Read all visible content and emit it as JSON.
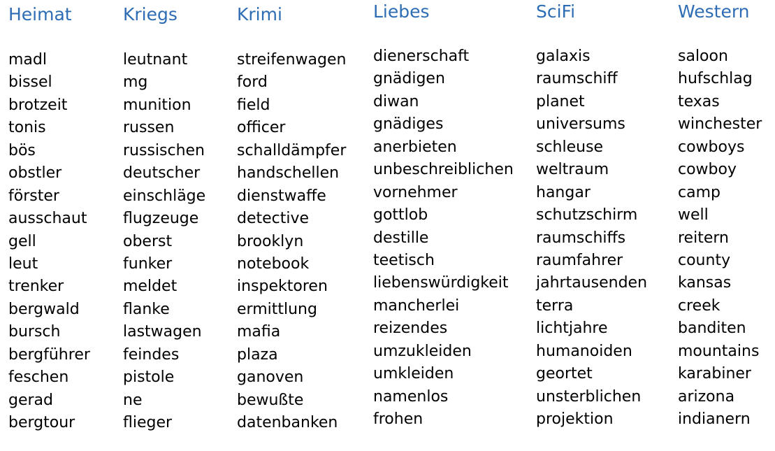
{
  "header_color": "#2E6DB4",
  "columns": [
    {
      "title": "Heimat",
      "words": [
        "madl",
        "bissel",
        "brotzeit",
        "tonis",
        "bös",
        "obstler",
        "förster",
        "ausschaut",
        "gell",
        "leut",
        "trenker",
        "bergwald",
        "bursch",
        "bergführer",
        "feschen",
        "gerad",
        "bergtour"
      ]
    },
    {
      "title": "Kriegs",
      "words": [
        "leutnant",
        "mg",
        "munition",
        "russen",
        "russischen",
        "deutscher",
        "einschläge",
        "flugzeuge",
        "oberst",
        "funker",
        "meldet",
        "flanke",
        "lastwagen",
        "feindes",
        "pistole",
        "ne",
        "flieger"
      ]
    },
    {
      "title": "Krimi",
      "words": [
        "streifenwagen",
        "ford",
        "field",
        "officer",
        "schalldämpfer",
        "handschellen",
        "dienstwaffe",
        "detective",
        "brooklyn",
        "notebook",
        "inspektoren",
        "ermittlung",
        "mafia",
        "plaza",
        "ganoven",
        "bewußte",
        "datenbanken"
      ]
    },
    {
      "title": "Liebes",
      "words": [
        "dienerschaft",
        "gnädigen",
        "diwan",
        "gnädiges",
        "anerbieten",
        "unbeschreiblichen",
        "vornehmer",
        "gottlob",
        "destille",
        "teetisch",
        "liebenswürdigkeit",
        "mancherlei",
        "reizendes",
        "umzukleiden",
        "umkleiden",
        "namenlos",
        "frohen"
      ]
    },
    {
      "title": "SciFi",
      "words": [
        "galaxis",
        "raumschiff",
        "planet",
        "universums",
        "schleuse",
        "weltraum",
        "hangar",
        "schutzschirm",
        "raumschiffs",
        "raumfahrer",
        "jahrtausenden",
        "terra",
        "lichtjahre",
        "humanoiden",
        "geortet",
        "unsterblichen",
        "projektion"
      ]
    },
    {
      "title": "Western",
      "words": [
        "saloon",
        "hufschlag",
        "texas",
        "winchester",
        "cowboys",
        "cowboy",
        "camp",
        "well",
        "reitern",
        "county",
        "kansas",
        "creek",
        "banditen",
        "mountains",
        "karabiner",
        "arizona",
        "indianern"
      ]
    }
  ]
}
